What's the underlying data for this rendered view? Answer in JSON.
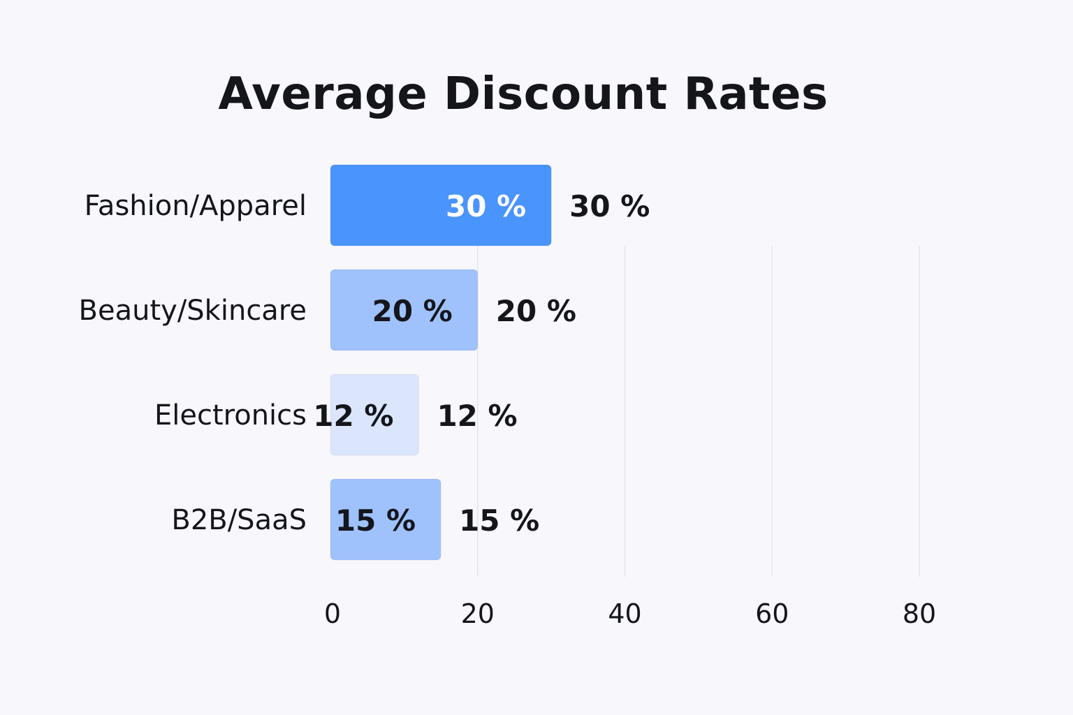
{
  "chart_data": {
    "type": "bar",
    "orientation": "horizontal",
    "title": "Average Discount Rates",
    "xlabel": "",
    "ylabel": "",
    "categories": [
      "Fashion/Apparel",
      "Beauty/Skincare",
      "Electronics",
      "B2B/SaaS"
    ],
    "values": [
      30,
      20,
      12,
      15
    ],
    "inside_labels": [
      "30 %",
      "20 %",
      "12 %",
      "15 %"
    ],
    "outside_labels": [
      "30 %",
      "20 %",
      "12 %",
      "15 %"
    ],
    "xticks": [
      0,
      20,
      40,
      60,
      80
    ],
    "xlim": [
      0,
      80
    ],
    "grid": true,
    "legend": "none",
    "colors": {
      "bars": [
        "#4a94fd",
        "#9fc2fc",
        "#dbe6fd",
        "#9fc2fc"
      ],
      "inside_label_colors": [
        "#ffffff",
        "#14161c",
        "#14161c",
        "#14161c"
      ],
      "outside_label": "#14161c",
      "grid": "#e3e4ea",
      "background": "#f8f8fc"
    }
  }
}
